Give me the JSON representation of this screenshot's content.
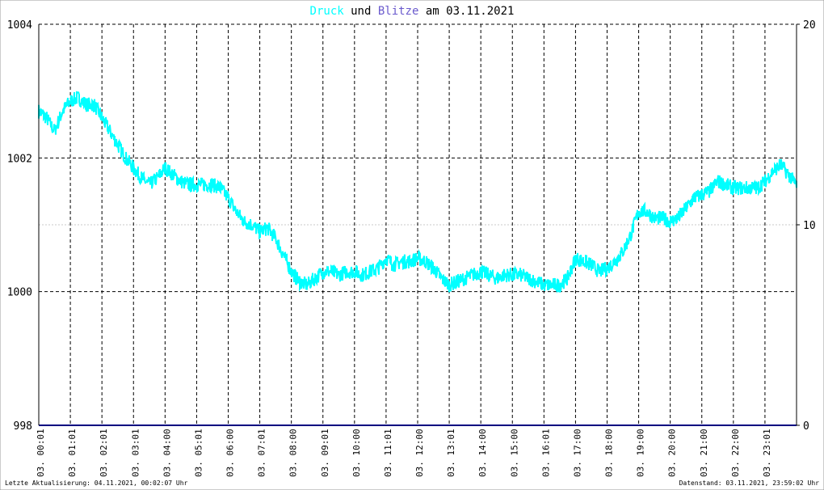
{
  "title": {
    "word1": "Druck",
    "word2": "und",
    "word3": "Blitze",
    "word4": "am",
    "date": "03.11.2021"
  },
  "colors": {
    "pressure": "#00ffff",
    "lightning": "#6a5acd",
    "baseline": "#000080",
    "grid": "#000000"
  },
  "footer": {
    "left": "Letzte Aktualisierung: 04.11.2021, 00:02:07 Uhr",
    "right": "Datenstand: 03.11.2021, 23:59:02 Uhr"
  },
  "chart_data": {
    "type": "line",
    "title": "Druck und Blitze am 03.11.2021",
    "y_left": {
      "min": 998,
      "max": 1004,
      "ticks": [
        "998",
        "1000",
        "1002",
        "1004"
      ]
    },
    "y_right": {
      "min": 0,
      "max": 20,
      "ticks": [
        "0",
        "10",
        "20"
      ]
    },
    "x_ticks": [
      "03. 00:01",
      "03. 01:01",
      "03. 02:01",
      "03. 03:01",
      "03. 04:00",
      "03. 05:01",
      "03. 06:00",
      "03. 07:01",
      "03. 08:00",
      "03. 09:01",
      "03. 10:00",
      "03. 11:01",
      "03. 12:00",
      "03. 13:01",
      "03. 14:00",
      "03. 15:00",
      "03. 16:01",
      "03. 17:00",
      "03. 18:00",
      "03. 19:00",
      "03. 20:00",
      "03. 21:00",
      "03. 22:00",
      "03. 23:01"
    ],
    "series": [
      {
        "name": "Druck",
        "axis": "left",
        "x_hours": [
          0,
          0.25,
          0.5,
          0.75,
          1,
          1.25,
          1.5,
          1.75,
          2,
          2.25,
          2.5,
          2.75,
          3,
          3.25,
          3.5,
          3.75,
          4,
          4.25,
          4.5,
          4.75,
          5,
          5.25,
          5.5,
          5.75,
          6,
          6.25,
          6.5,
          6.75,
          7,
          7.25,
          7.5,
          7.75,
          8,
          8.25,
          8.5,
          8.75,
          9,
          9.25,
          9.5,
          9.75,
          10,
          10.25,
          10.5,
          10.75,
          11,
          11.25,
          11.5,
          11.75,
          12,
          12.25,
          12.5,
          12.75,
          13,
          13.25,
          13.5,
          13.75,
          14,
          14.25,
          14.5,
          14.75,
          15,
          15.25,
          15.5,
          15.75,
          16,
          16.25,
          16.5,
          16.75,
          17,
          17.25,
          17.5,
          17.75,
          18,
          18.25,
          18.5,
          18.75,
          19,
          19.25,
          19.5,
          19.75,
          20,
          20.25,
          20.5,
          20.75,
          21,
          21.25,
          21.5,
          21.75,
          22,
          22.25,
          22.5,
          22.75,
          23,
          23.25,
          23.5,
          23.75,
          23.99
        ],
        "values": [
          1002.7,
          1002.6,
          1002.4,
          1002.7,
          1002.85,
          1002.9,
          1002.8,
          1002.8,
          1002.6,
          1002.4,
          1002.2,
          1002.0,
          1001.85,
          1001.7,
          1001.6,
          1001.7,
          1001.85,
          1001.75,
          1001.65,
          1001.6,
          1001.6,
          1001.6,
          1001.6,
          1001.55,
          1001.4,
          1001.2,
          1001.05,
          1001.0,
          1000.9,
          1000.95,
          1000.8,
          1000.55,
          1000.3,
          1000.15,
          1000.1,
          1000.2,
          1000.3,
          1000.3,
          1000.25,
          1000.3,
          1000.3,
          1000.25,
          1000.3,
          1000.35,
          1000.5,
          1000.4,
          1000.45,
          1000.45,
          1000.5,
          1000.45,
          1000.35,
          1000.2,
          1000.1,
          1000.15,
          1000.2,
          1000.25,
          1000.3,
          1000.25,
          1000.2,
          1000.25,
          1000.25,
          1000.25,
          1000.2,
          1000.15,
          1000.1,
          1000.1,
          1000.1,
          1000.2,
          1000.5,
          1000.45,
          1000.4,
          1000.3,
          1000.35,
          1000.45,
          1000.6,
          1000.85,
          1001.2,
          1001.2,
          1001.1,
          1001.1,
          1001.05,
          1001.1,
          1001.25,
          1001.4,
          1001.45,
          1001.5,
          1001.65,
          1001.6,
          1001.55,
          1001.55,
          1001.55,
          1001.55,
          1001.65,
          1001.8,
          1001.9,
          1001.75,
          1001.6
        ]
      }
    ],
    "lightning": {
      "name": "Blitze",
      "axis": "right",
      "values": [
        0
      ]
    },
    "grid": true
  }
}
